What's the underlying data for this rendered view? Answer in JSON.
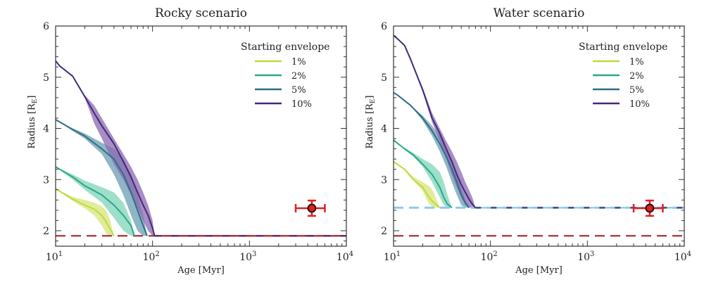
{
  "chart_data": [
    {
      "type": "line",
      "title": "Rocky scenario",
      "xlabel": "Age [Myr]",
      "ylabel": "Radius [R_E]",
      "xscale": "log",
      "xlim": [
        10,
        10000
      ],
      "ylim": [
        1.7,
        6
      ],
      "xticks": [
        {
          "value": 10,
          "base": "10",
          "exp": "1"
        },
        {
          "value": 100,
          "base": "10",
          "exp": "2"
        },
        {
          "value": 1000,
          "base": "10",
          "exp": "3"
        },
        {
          "value": 10000,
          "base": "10",
          "exp": "4"
        }
      ],
      "yticks": [
        2,
        3,
        4,
        5,
        6
      ],
      "legend": {
        "title": "Starting envelope",
        "position": "top-right"
      },
      "floor": {
        "value": 1.9,
        "color": "#b03030",
        "style": "dashed"
      },
      "series": [
        {
          "name": "1%",
          "color": "#c3d93a",
          "fill": "#d6e67a",
          "x": [
            10,
            15,
            20,
            25,
            30,
            33,
            36,
            40
          ],
          "y": [
            2.82,
            2.62,
            2.5,
            2.42,
            2.3,
            2.18,
            2.05,
            1.9
          ],
          "lo": [
            2.82,
            2.58,
            2.44,
            2.3,
            2.1,
            1.95,
            1.9,
            1.9
          ],
          "hi": [
            2.82,
            2.66,
            2.6,
            2.55,
            2.48,
            2.4,
            2.25,
            1.9
          ],
          "hi_x_end": 45
        },
        {
          "name": "2%",
          "color": "#2aa889",
          "fill": "#7dd4b8",
          "x": [
            10,
            15,
            20,
            30,
            40,
            50,
            60,
            65
          ],
          "y": [
            3.25,
            3.05,
            2.88,
            2.7,
            2.5,
            2.3,
            2.1,
            1.9
          ],
          "lo": [
            3.25,
            3.0,
            2.8,
            2.55,
            2.25,
            2.0,
            1.9,
            1.9
          ],
          "hi": [
            3.25,
            3.1,
            2.98,
            2.85,
            2.75,
            2.55,
            2.2,
            1.9
          ],
          "hi_x_end": 70
        },
        {
          "name": "5%",
          "color": "#2f6d85",
          "fill": "#6a9db3",
          "x": [
            10,
            15,
            20,
            30,
            40,
            50,
            60,
            70,
            80,
            88
          ],
          "y": [
            4.17,
            3.98,
            3.85,
            3.6,
            3.4,
            3.1,
            2.75,
            2.4,
            2.1,
            1.9
          ],
          "lo": [
            4.17,
            3.95,
            3.8,
            3.5,
            3.1,
            2.7,
            2.3,
            2.0,
            1.9,
            1.9
          ],
          "hi": [
            4.17,
            4.0,
            3.9,
            3.72,
            3.6,
            3.4,
            3.1,
            2.7,
            2.3,
            1.9
          ],
          "hi_x_end": 95
        },
        {
          "name": "10%",
          "color": "#45287a",
          "fill": "#8a68b0",
          "x": [
            10,
            11,
            15,
            20,
            25,
            30,
            40,
            50,
            60,
            70,
            80,
            90,
            100,
            105
          ],
          "y": [
            5.32,
            5.22,
            5.02,
            4.62,
            4.3,
            4.05,
            3.7,
            3.35,
            3.05,
            2.75,
            2.5,
            2.3,
            2.05,
            1.9
          ],
          "lo": [
            5.32,
            5.22,
            5.02,
            4.6,
            4.1,
            3.8,
            3.3,
            3.0,
            2.7,
            2.45,
            2.2,
            2.0,
            1.9,
            1.9
          ],
          "hi": [
            5.32,
            5.22,
            5.02,
            4.65,
            4.45,
            4.2,
            3.8,
            3.5,
            3.25,
            3.0,
            2.75,
            2.5,
            2.2,
            1.9
          ],
          "hi_x_end": 135
        }
      ],
      "observation": {
        "x": 4400,
        "x_err": [
          3000,
          6000
        ],
        "y": 2.44,
        "y_err": [
          2.29,
          2.59
        ],
        "color": "#e02020"
      }
    },
    {
      "type": "line",
      "title": "Water scenario",
      "xlabel": "Age [Myr]",
      "ylabel": "Radius [R_E]",
      "xscale": "log",
      "xlim": [
        10,
        10000
      ],
      "ylim": [
        1.7,
        6
      ],
      "xticks": [
        {
          "value": 10,
          "base": "10",
          "exp": "1"
        },
        {
          "value": 100,
          "base": "10",
          "exp": "2"
        },
        {
          "value": 1000,
          "base": "10",
          "exp": "3"
        },
        {
          "value": 10000,
          "base": "10",
          "exp": "4"
        }
      ],
      "yticks": [
        2,
        3,
        4,
        5,
        6
      ],
      "legend": {
        "title": "Starting envelope",
        "position": "top-right"
      },
      "floor": {
        "value": 1.9,
        "color": "#b03030",
        "style": "dashed"
      },
      "core_line": {
        "value": 2.45,
        "color": "#8ecae6",
        "style": "dashed"
      },
      "series": [
        {
          "name": "1%",
          "color": "#c3d93a",
          "fill": "#d6e67a",
          "x": [
            10,
            13,
            16,
            20,
            22,
            24,
            26,
            28,
            30
          ],
          "y": [
            3.35,
            3.2,
            3.0,
            2.85,
            2.72,
            2.62,
            2.55,
            2.5,
            2.45
          ],
          "lo": [
            3.35,
            3.18,
            2.98,
            2.78,
            2.6,
            2.5,
            2.45,
            2.45,
            2.45
          ],
          "hi": [
            3.35,
            3.22,
            3.05,
            2.95,
            2.9,
            2.85,
            2.75,
            2.6,
            2.45
          ],
          "hi_x_end": 33
        },
        {
          "name": "2%",
          "color": "#2aa889",
          "fill": "#7dd4b8",
          "x": [
            10,
            13,
            16,
            20,
            25,
            30,
            33,
            36,
            40
          ],
          "y": [
            3.77,
            3.6,
            3.48,
            3.3,
            3.1,
            2.85,
            2.65,
            2.52,
            2.45
          ],
          "lo": [
            3.77,
            3.58,
            3.45,
            3.25,
            2.95,
            2.65,
            2.5,
            2.45,
            2.45
          ],
          "hi": [
            3.77,
            3.62,
            3.52,
            3.4,
            3.3,
            3.15,
            2.95,
            2.7,
            2.45
          ],
          "hi_x_end": 45
        },
        {
          "name": "5%",
          "color": "#2f6d85",
          "fill": "#6a9db3",
          "x": [
            10,
            11,
            15,
            20,
            25,
            30,
            35,
            40,
            45,
            50,
            55,
            60
          ],
          "y": [
            4.7,
            4.65,
            4.45,
            4.2,
            3.95,
            3.7,
            3.45,
            3.2,
            2.95,
            2.7,
            2.55,
            2.45
          ],
          "lo": [
            4.7,
            4.65,
            4.45,
            4.15,
            3.85,
            3.55,
            3.25,
            2.95,
            2.7,
            2.5,
            2.45,
            2.45
          ],
          "hi": [
            4.7,
            4.65,
            4.45,
            4.25,
            4.05,
            3.85,
            3.6,
            3.35,
            3.1,
            2.85,
            2.6,
            2.45
          ],
          "hi_x_end": 65
        },
        {
          "name": "10%",
          "color": "#45287a",
          "fill": "#8a68b0",
          "x": [
            10,
            11,
            13,
            15,
            20,
            25,
            30,
            35,
            40,
            45,
            50,
            55,
            60,
            65,
            70
          ],
          "y": [
            5.82,
            5.75,
            5.62,
            5.35,
            4.75,
            4.2,
            3.9,
            3.6,
            3.35,
            3.1,
            2.9,
            2.75,
            2.62,
            2.52,
            2.45
          ],
          "lo": [
            5.82,
            5.75,
            5.62,
            5.35,
            4.72,
            4.12,
            3.75,
            3.4,
            3.1,
            2.85,
            2.65,
            2.5,
            2.45,
            2.45,
            2.45
          ],
          "hi": [
            5.82,
            5.75,
            5.62,
            5.35,
            4.8,
            4.3,
            4.0,
            3.75,
            3.55,
            3.35,
            3.15,
            2.95,
            2.8,
            2.65,
            2.45
          ],
          "hi_x_end": 76
        }
      ],
      "observation": {
        "x": 4400,
        "x_err": [
          3000,
          6000
        ],
        "y": 2.44,
        "y_err": [
          2.29,
          2.59
        ],
        "color": "#e02020"
      }
    }
  ]
}
